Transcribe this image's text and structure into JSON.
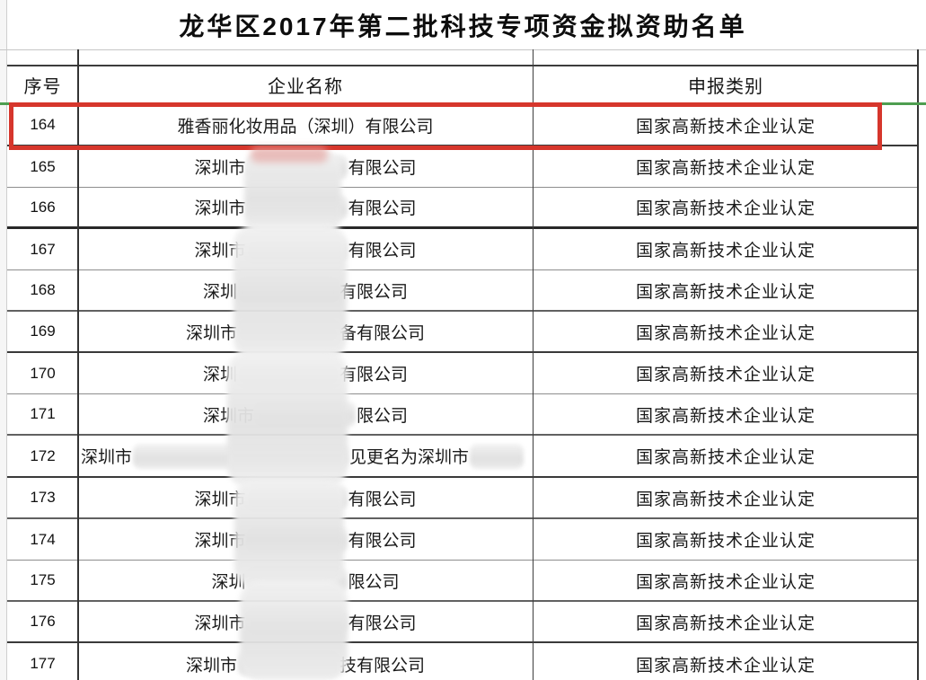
{
  "title": "龙华区2017年第二批科技专项资金拟资助名单",
  "table": {
    "headers": {
      "no": "序号",
      "name": "企业名称",
      "category": "申报类别"
    },
    "rows": [
      {
        "no": "164",
        "highlighted": true,
        "align": "center",
        "parts": [
          {
            "text": "雅香丽化妆用品（深圳）有限公司"
          }
        ],
        "category": "国家高新技术企业认定"
      },
      {
        "no": "165",
        "highlighted": false,
        "align": "center",
        "parts": [
          {
            "text": "深圳市"
          },
          {
            "gap": 112
          },
          {
            "text": "有限公司"
          }
        ],
        "category": "国家高新技术企业认定"
      },
      {
        "no": "166",
        "highlighted": false,
        "align": "center",
        "parts": [
          {
            "text": "深圳市"
          },
          {
            "gap": 112
          },
          {
            "text": "有限公司"
          }
        ],
        "category": "国家高新技术企业认定"
      },
      {
        "no": "167",
        "highlighted": false,
        "align": "center",
        "parts": [
          {
            "text": "深圳市"
          },
          {
            "gap": 112
          },
          {
            "text": "有限公司"
          }
        ],
        "category": "国家高新技术企业认定"
      },
      {
        "no": "168",
        "highlighted": false,
        "align": "center",
        "parts": [
          {
            "text": "深圳"
          },
          {
            "gap": 112
          },
          {
            "text": "有限公司"
          }
        ],
        "category": "国家高新技术企业认定"
      },
      {
        "no": "169",
        "highlighted": false,
        "align": "center",
        "parts": [
          {
            "text": "深圳市"
          },
          {
            "gap": 112
          },
          {
            "text": "备有限公司"
          }
        ],
        "category": "国家高新技术企业认定"
      },
      {
        "no": "170",
        "highlighted": false,
        "align": "center",
        "parts": [
          {
            "text": "深圳"
          },
          {
            "gap": 112
          },
          {
            "text": "有限公司"
          }
        ],
        "category": "国家高新技术企业认定"
      },
      {
        "no": "171",
        "highlighted": false,
        "align": "center",
        "parts": [
          {
            "text": "深圳市"
          },
          {
            "gap": 112
          },
          {
            "text": "限公司"
          }
        ],
        "category": "国家高新技术企业认定"
      },
      {
        "no": "172",
        "highlighted": false,
        "align": "left",
        "parts": [
          {
            "text": "深圳市"
          },
          {
            "gap": 240
          },
          {
            "text": "见更名为深圳市"
          },
          {
            "gap": 60
          }
        ],
        "category": "国家高新技术企业认定"
      },
      {
        "no": "173",
        "highlighted": false,
        "align": "center",
        "parts": [
          {
            "text": "深圳市"
          },
          {
            "gap": 112
          },
          {
            "text": "有限公司"
          }
        ],
        "category": "国家高新技术企业认定"
      },
      {
        "no": "174",
        "highlighted": false,
        "align": "center",
        "parts": [
          {
            "text": "深圳市"
          },
          {
            "gap": 112
          },
          {
            "text": "有限公司"
          }
        ],
        "category": "国家高新技术企业认定"
      },
      {
        "no": "175",
        "highlighted": false,
        "align": "center",
        "parts": [
          {
            "text": "深圳"
          },
          {
            "gap": 112
          },
          {
            "text": "限公司"
          }
        ],
        "category": "国家高新技术企业认定"
      },
      {
        "no": "176",
        "highlighted": false,
        "align": "center",
        "parts": [
          {
            "text": "深圳市"
          },
          {
            "gap": 112
          },
          {
            "text": "有限公司"
          }
        ],
        "category": "国家高新技术企业认定"
      },
      {
        "no": "177",
        "highlighted": false,
        "align": "center",
        "parts": [
          {
            "text": "深圳市"
          },
          {
            "gap": 112
          },
          {
            "text": "技有限公司"
          }
        ],
        "category": "国家高新技术企业认定"
      }
    ]
  },
  "colors": {
    "highlight_box": "#d6362c",
    "row_top_line": "#4e9e50"
  }
}
